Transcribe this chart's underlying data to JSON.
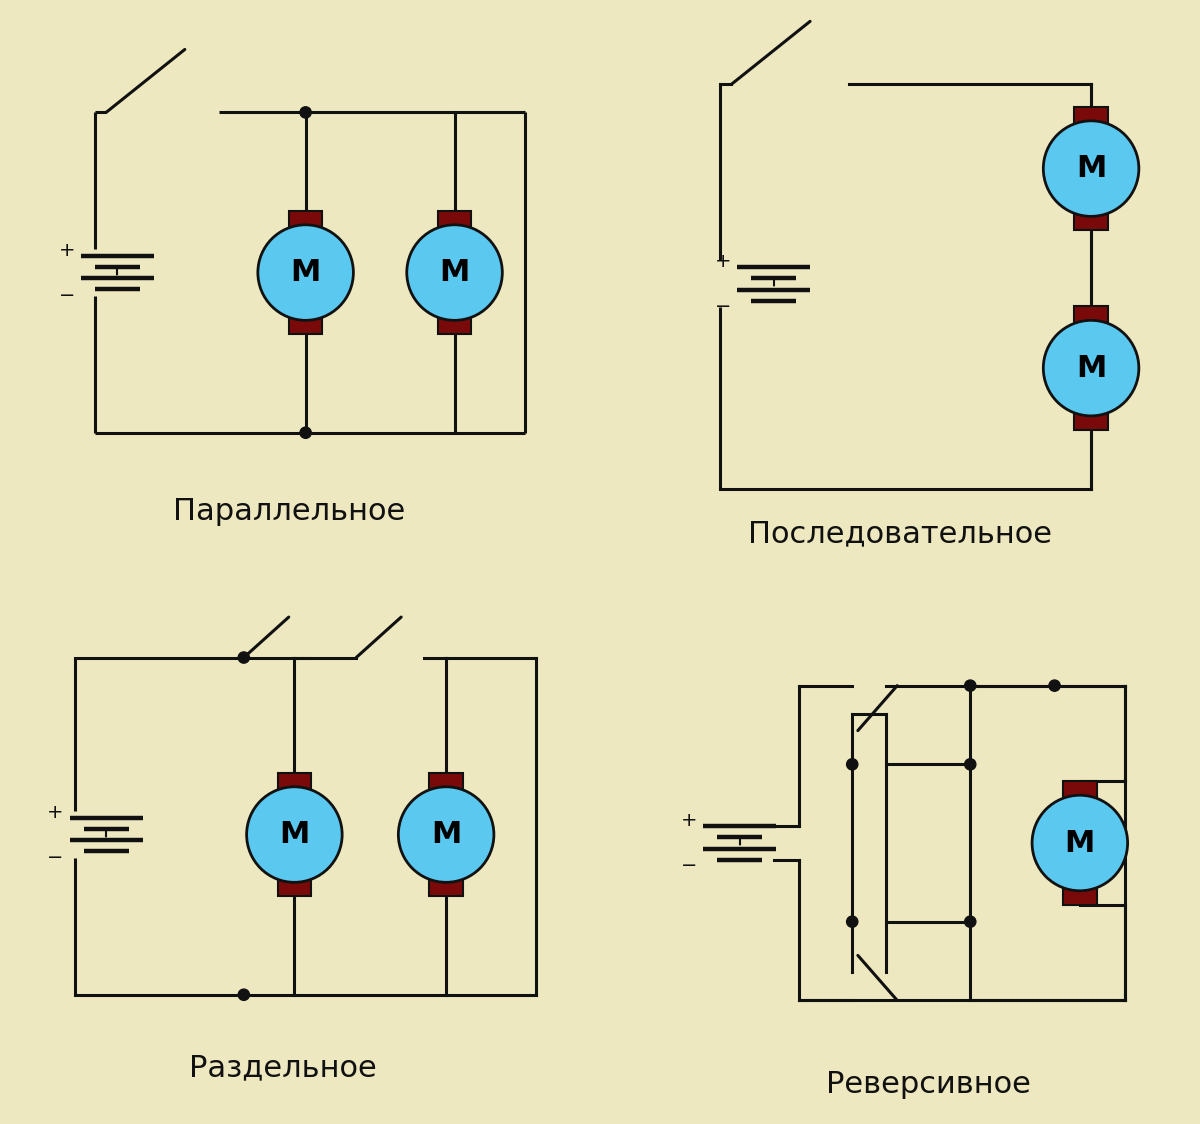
{
  "bg_color": "#EDE8C0",
  "line_color": "#111111",
  "motor_fill": "#5BC8F0",
  "motor_edge": "#111111",
  "brush_fill": "#7A0A0A",
  "brush_edge": "#111111",
  "dot_color": "#111111",
  "label_color": "#111111",
  "labels": [
    "Параллельное",
    "Последовательное",
    "Раздельное",
    "Реверсивное"
  ],
  "label_fontsize": 22,
  "motor_label": "М",
  "motor_fontsize": 22,
  "lw": 2.2
}
